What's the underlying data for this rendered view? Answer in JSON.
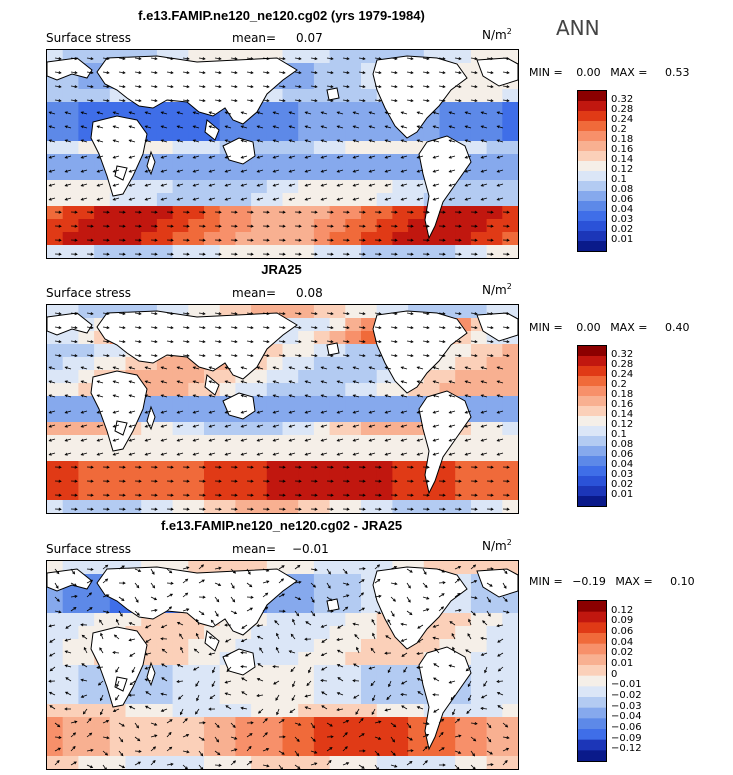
{
  "season": "ANN",
  "panels": [
    {
      "title": "f.e13.FAMIP.ne120_ne120.cg02 (yrs 1979-1984)",
      "variable": "Surface stress",
      "mean_label": "mean=",
      "mean_value": "0.07",
      "unit_base": "N/m",
      "unit_exp": "2",
      "min_label": "MIN =",
      "min_value": "0.00",
      "max_label": "MAX =",
      "max_value": "0.53",
      "levels": [
        "0.32",
        "0.28",
        "0.24",
        "0.2",
        "0.18",
        "0.16",
        "0.14",
        "0.12",
        "0.1",
        "0.08",
        "0.06",
        "0.04",
        "0.03",
        "0.02",
        "0.01"
      ],
      "colors": [
        "#8b0000",
        "#c1170f",
        "#e03a16",
        "#f06a3a",
        "#f7906a",
        "#f8b091",
        "#fbd0b9",
        "#f5efe8",
        "#dbe6f7",
        "#b3cbf2",
        "#86a9ed",
        "#5d89e8",
        "#3f6ee8",
        "#2b52d8",
        "#1c36b8",
        "#0a1a8a"
      ]
    },
    {
      "title": "JRA25",
      "variable": "Surface stress",
      "mean_label": "mean=",
      "mean_value": "0.08",
      "unit_base": "N/m",
      "unit_exp": "2",
      "min_label": "MIN =",
      "min_value": "0.00",
      "max_label": "MAX =",
      "max_value": "0.40",
      "levels": [
        "0.32",
        "0.28",
        "0.24",
        "0.2",
        "0.18",
        "0.16",
        "0.14",
        "0.12",
        "0.1",
        "0.08",
        "0.06",
        "0.04",
        "0.03",
        "0.02",
        "0.01"
      ],
      "colors": [
        "#8b0000",
        "#c1170f",
        "#e03a16",
        "#f06a3a",
        "#f7906a",
        "#f8b091",
        "#fbd0b9",
        "#f5efe8",
        "#dbe6f7",
        "#b3cbf2",
        "#86a9ed",
        "#5d89e8",
        "#3f6ee8",
        "#2b52d8",
        "#1c36b8",
        "#0a1a8a"
      ]
    },
    {
      "title": "f.e13.FAMIP.ne120_ne120.cg02 - JRA25",
      "variable": "Surface stress",
      "mean_label": "mean=",
      "mean_value": "−0.01",
      "unit_base": "N/m",
      "unit_exp": "2",
      "min_label": "MIN =",
      "min_value": "−0.19",
      "max_label": "MAX =",
      "max_value": "0.10",
      "levels": [
        "0.12",
        "0.09",
        "0.06",
        "0.04",
        "0.02",
        "0.01",
        "0",
        "−0.01",
        "−0.02",
        "−0.03",
        "−0.04",
        "−0.06",
        "−0.09",
        "−0.12"
      ],
      "colors": [
        "#8b0000",
        "#c1170f",
        "#e03a16",
        "#f06a3a",
        "#f7906a",
        "#f8b091",
        "#fbd0b9",
        "#f5efe8",
        "#dbe6f7",
        "#b3cbf2",
        "#86a9ed",
        "#5d89e8",
        "#3f6ee8",
        "#1c36b8",
        "#0a1a8a"
      ]
    }
  ]
}
